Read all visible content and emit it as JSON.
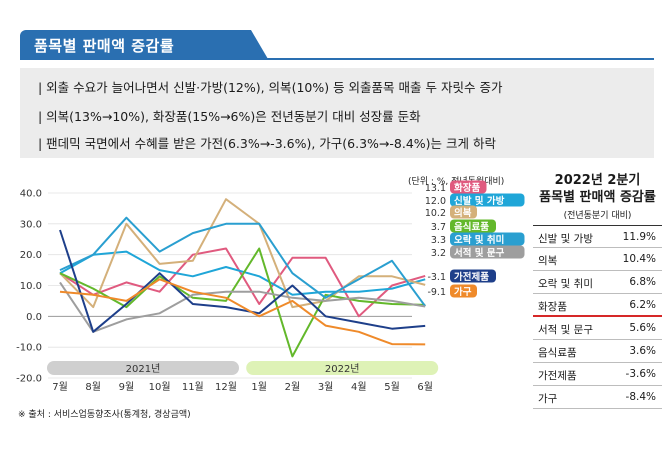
{
  "header": {
    "title": "품목별 판매액 증감률"
  },
  "summary": [
    "| 외출 수요가 늘어나면서 신발·가방(12%), 의복(10%) 등 외출품목 매출 두 자릿수 증가",
    "| 의복(13%→10%), 화장품(15%→6%)은 전년동분기 대비 성장률 둔화",
    "| 팬데믹 국면에서 수혜를 받은 가전(6.3%→-3.6%), 가구(6.3%→-8.4%)는 크게 하락"
  ],
  "unit": "(단위 : %, 전년동월대비)",
  "source": "※ 출처 : 서비스업동향조사(통계청, 경상금액)",
  "chart_data": {
    "type": "line",
    "x": [
      "7월",
      "8월",
      "9월",
      "10월",
      "11월",
      "12월",
      "1월",
      "2월",
      "3월",
      "4월",
      "5월",
      "6월"
    ],
    "year_groups": [
      {
        "label": "2021년",
        "from": 0,
        "to": 5,
        "color": "#cfcfcf"
      },
      {
        "label": "2022년",
        "from": 6,
        "to": 11,
        "color": "#def2b6"
      }
    ],
    "ylim": [
      -20,
      40
    ],
    "yticks": [
      "40.0",
      "30.0",
      "20.0",
      "10.0",
      "0.0",
      "-10.0",
      "-20.0"
    ],
    "grid": true,
    "series": [
      {
        "name": "화장품",
        "end_label": "13.1",
        "color": "#e05a7f",
        "values": [
          14,
          7,
          11,
          8,
          20,
          22,
          4,
          19,
          19,
          0,
          10,
          13.1
        ]
      },
      {
        "name": "신발 및 가방",
        "end_label": "12.0",
        "color": "#1fa6d8",
        "values": [
          14,
          20,
          21,
          15,
          13,
          16,
          13,
          7,
          8,
          8,
          9,
          12.0
        ]
      },
      {
        "name": "의복",
        "end_label": "10.2",
        "color": "#d4b07a",
        "values": [
          14,
          3,
          30,
          17,
          18,
          38,
          30,
          3,
          5,
          13,
          13,
          10.2
        ]
      },
      {
        "name": "음식료품",
        "end_label": "3.7",
        "color": "#63b82b",
        "values": [
          14,
          9,
          3,
          13,
          6,
          5,
          22,
          -13,
          7,
          5,
          4,
          3.7
        ]
      },
      {
        "name": "오락 및 취미",
        "end_label": "3.3",
        "color": "#2a9fd0",
        "values": [
          15,
          20,
          32,
          21,
          27,
          30,
          30,
          14,
          6,
          12,
          18,
          3.3
        ]
      },
      {
        "name": "서적 및 문구",
        "end_label": "3.2",
        "color": "#9e9e9e",
        "values": [
          11,
          -5,
          -1,
          1,
          7,
          8,
          8,
          6,
          5,
          6,
          5,
          3.2
        ]
      },
      {
        "name": "가전제품",
        "end_label": "-3.1",
        "color": "#1e3f8a",
        "values": [
          28,
          -5,
          4,
          14,
          4,
          3,
          1,
          10,
          0,
          -2,
          -4,
          -3.1
        ]
      },
      {
        "name": "가구",
        "end_label": "-9.1",
        "color": "#ef8a2a",
        "values": [
          8,
          7,
          5,
          12,
          8,
          6,
          0,
          5,
          -3,
          -5,
          -9,
          -9.1
        ]
      }
    ]
  },
  "ranking": {
    "title_line1": "2022년 2분기",
    "title_line2": "품목별 판매액  증감률",
    "subtitle": "(전년동분기 대비)",
    "rows": [
      {
        "name": "신발 및 가방",
        "value": "11.9%"
      },
      {
        "name": "의복",
        "value": "10.4%"
      },
      {
        "name": "오락 및 취미",
        "value": "6.8%"
      },
      {
        "name": "화장품",
        "value": "6.2%"
      },
      {
        "name": "서적 및 문구",
        "value": "5.6%"
      },
      {
        "name": "음식료품",
        "value": "3.6%"
      },
      {
        "name": "가전제품",
        "value": "-3.6%"
      },
      {
        "name": "가구",
        "value": "-8.4%"
      }
    ]
  }
}
